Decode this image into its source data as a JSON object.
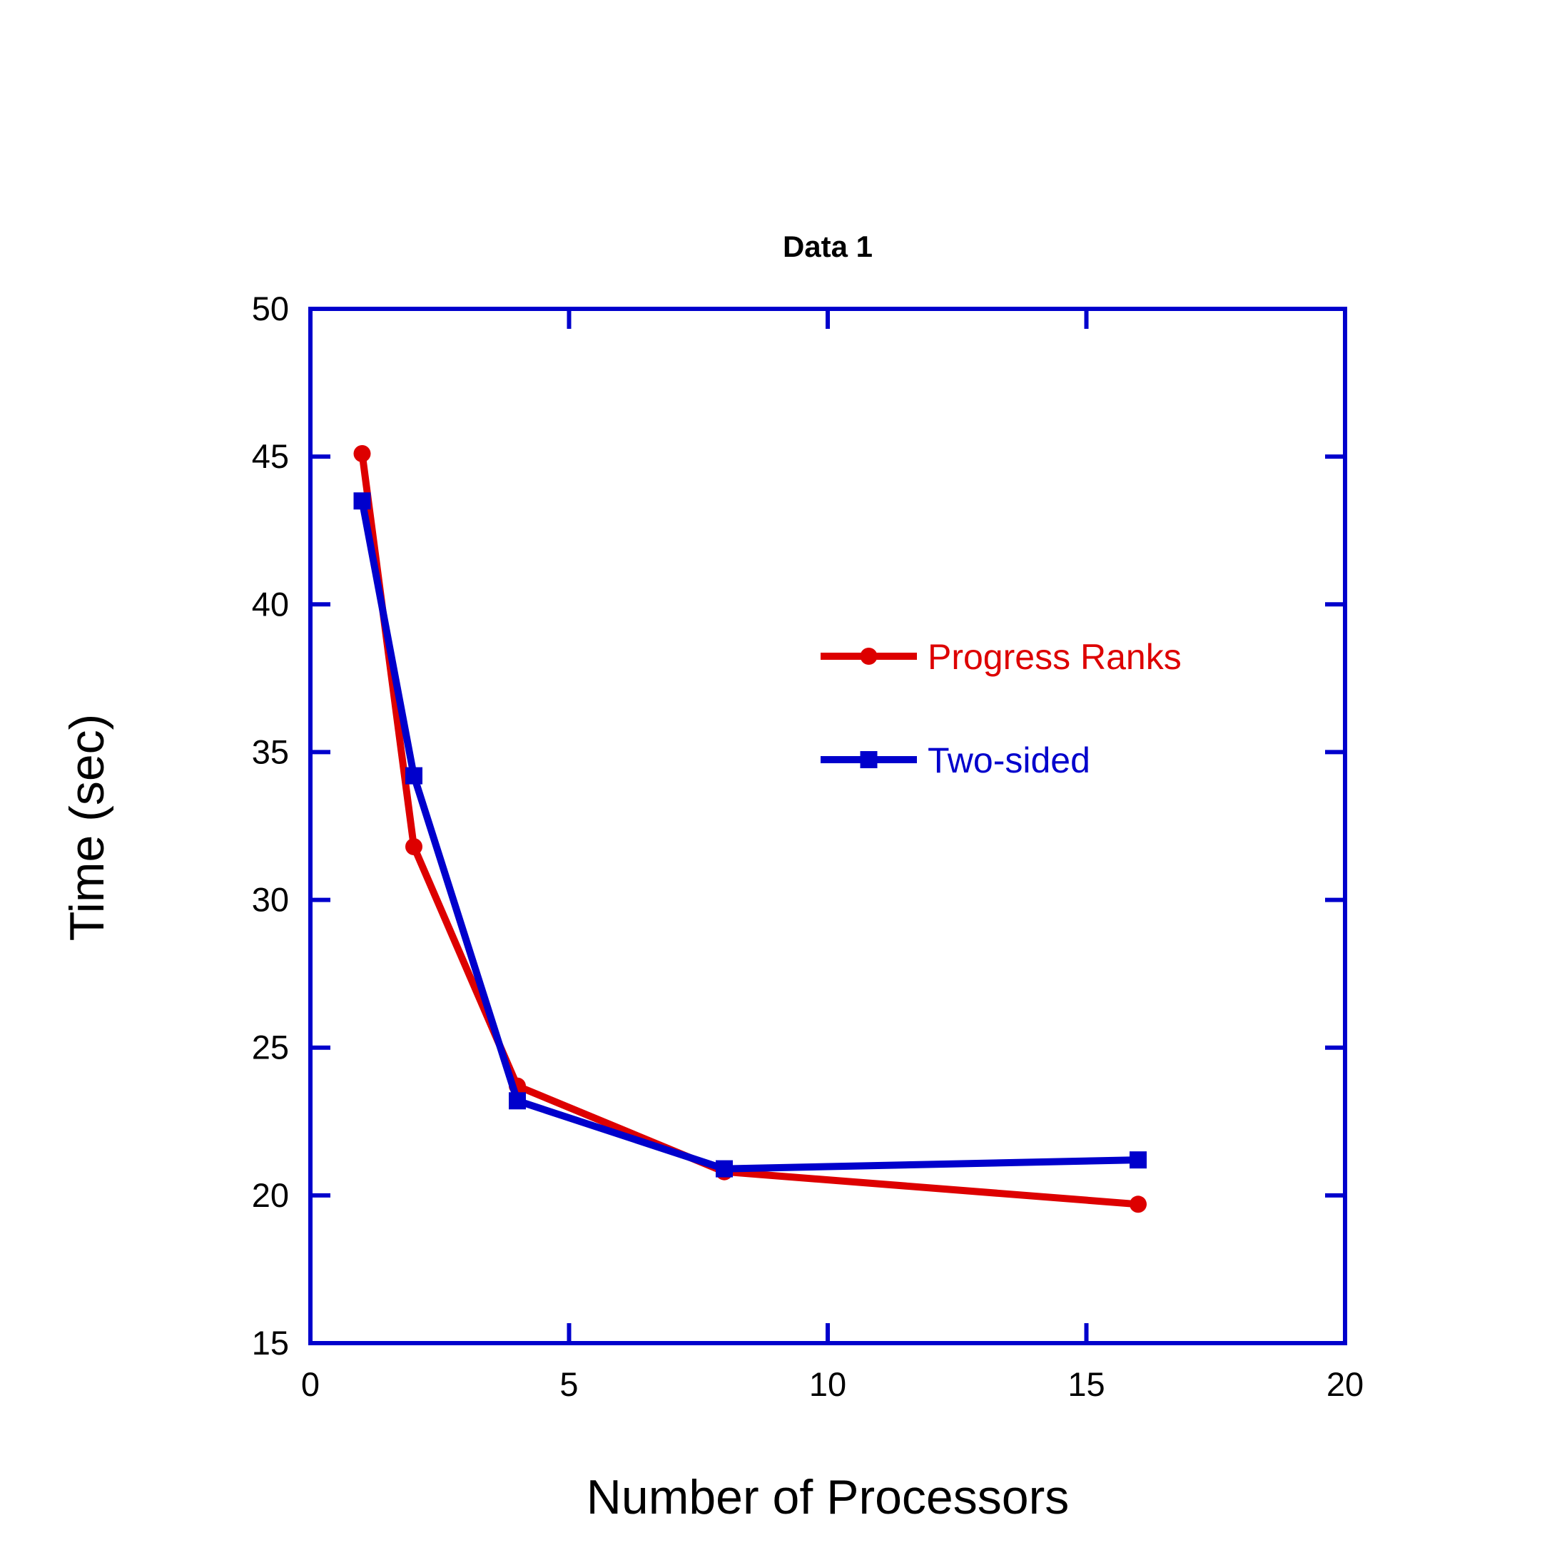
{
  "chart_data": {
    "type": "line",
    "title": "Data 1",
    "xlabel": "Number of Processors",
    "ylabel": "Time (sec)",
    "xlim": [
      0,
      20
    ],
    "ylim": [
      15,
      50
    ],
    "x_ticks": [
      0,
      5,
      10,
      15,
      20
    ],
    "y_ticks": [
      15,
      20,
      25,
      30,
      35,
      40,
      45,
      50
    ],
    "grid": false,
    "legend_position": "center-right",
    "axis_color": "#0000CC",
    "series": [
      {
        "name": "Progress Ranks",
        "color": "#DD0000",
        "marker": "circle",
        "x": [
          1,
          2,
          4,
          8,
          16
        ],
        "y": [
          45.1,
          31.8,
          23.7,
          20.8,
          19.7
        ]
      },
      {
        "name": "Two-sided",
        "color": "#0000CC",
        "marker": "square",
        "x": [
          1,
          2,
          4,
          8,
          16
        ],
        "y": [
          43.5,
          34.2,
          23.2,
          20.9,
          21.2
        ]
      }
    ]
  }
}
